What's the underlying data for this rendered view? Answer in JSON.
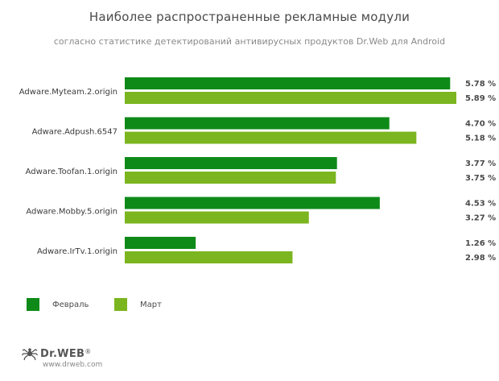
{
  "header": {
    "title": "Наиболее распространенные рекламные модули",
    "subtitle": "согласно статистике детектирований антивирусных продуктов Dr.Web для Android"
  },
  "chart_data": {
    "type": "bar",
    "orientation": "horizontal",
    "title": "Наиболее распространенные рекламные модули",
    "subtitle": "согласно статистике детектирований антивирусных продуктов Dr.Web для Android",
    "categories": [
      "Adware.Myteam.2.origin",
      "Adware.Adpush.6547",
      "Adware.Toofan.1.origin",
      "Adware.Mobby.5.origin",
      "Adware.IrTv.1.origin"
    ],
    "series": [
      {
        "name": "Февраль",
        "values": [
          5.78,
          4.7,
          3.77,
          4.53,
          1.26
        ],
        "labels": [
          "5.78 %",
          "4.70 %",
          "3.77 %",
          "4.53 %",
          "1.26 %"
        ],
        "color": "#0e8a18"
      },
      {
        "name": "Март",
        "values": [
          5.89,
          5.18,
          3.75,
          3.27,
          2.98
        ],
        "labels": [
          "5.89 %",
          "5.18 %",
          "3.75 %",
          "3.27 %",
          "2.98 %"
        ],
        "color": "#7bb51f"
      }
    ],
    "xlim": [
      0,
      5.89
    ],
    "grid": false,
    "legend_position": "bottom-left"
  },
  "legend": [
    {
      "label": "Февраль",
      "color": "#0e8a18"
    },
    {
      "label": "Март",
      "color": "#7bb51f"
    }
  ],
  "logo": {
    "brand": "Dr.WEB",
    "mark": "®",
    "icon": "spider-icon",
    "url": "www.drweb.com"
  }
}
